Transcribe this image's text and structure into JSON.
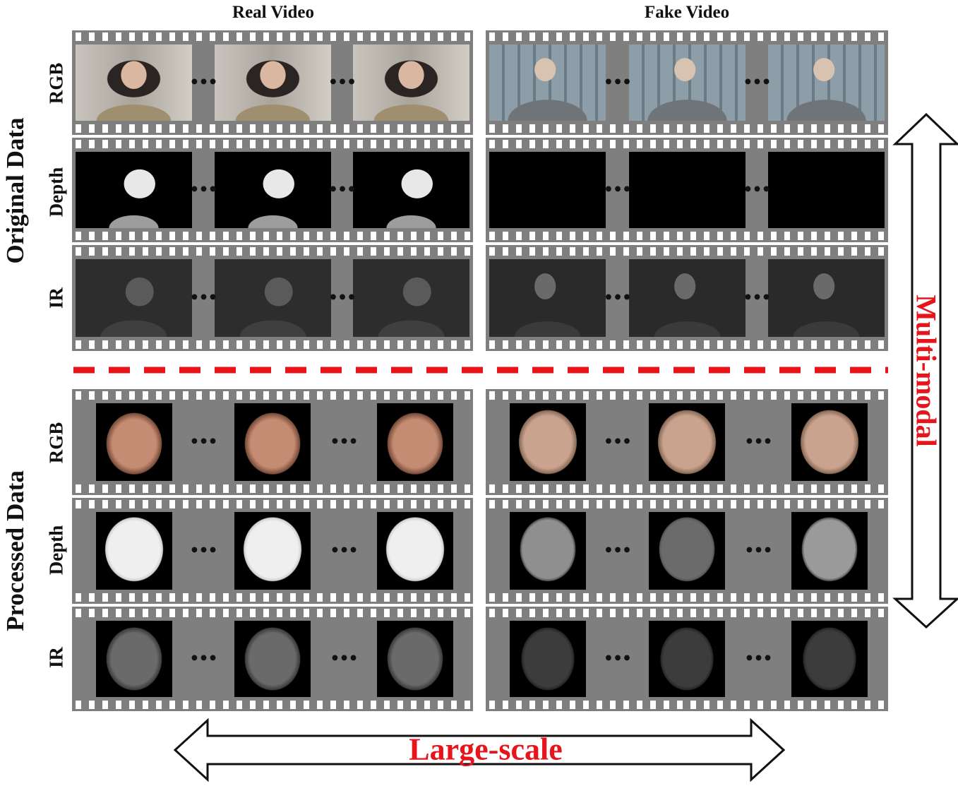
{
  "columns": {
    "real": "Real Video",
    "fake": "Fake Video"
  },
  "groups": {
    "original": "Original Data",
    "processed": "Processed Data"
  },
  "rows": {
    "rgb": "RGB",
    "depth": "Depth",
    "ir": "IR"
  },
  "ellipsis": "•••",
  "annotations": {
    "multimodal": "Multi-modal",
    "largescale": "Large-scale"
  },
  "colors": {
    "accent": "#e8141c",
    "film": "#7f7f7f"
  }
}
